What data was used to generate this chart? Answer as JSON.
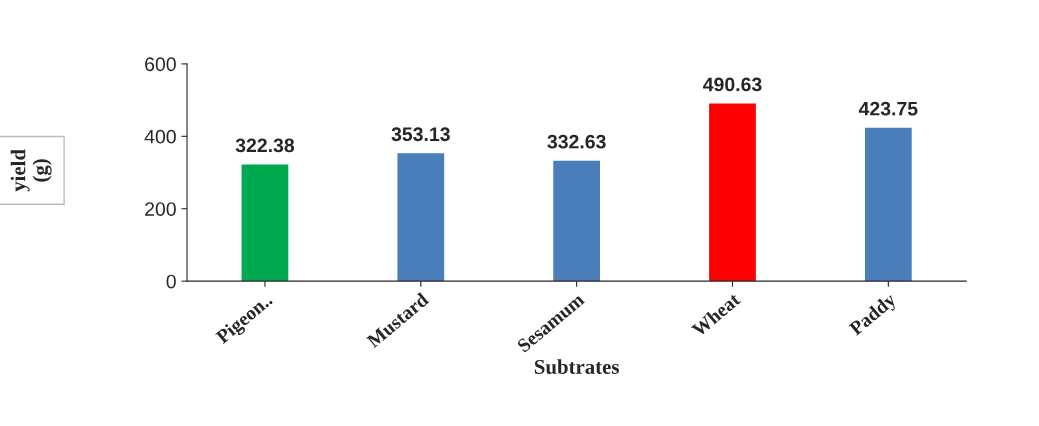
{
  "chart_data": {
    "type": "bar",
    "xlabel": "Subtrates",
    "ylabel": "yield\n(g)",
    "categories": [
      "Pigeon..",
      "Mustard",
      "Sesamum",
      "Wheat",
      "Paddy"
    ],
    "values": [
      322.38,
      353.13,
      332.63,
      490.63,
      423.75
    ],
    "colors": [
      "#00a84f",
      "#4a7ebb",
      "#4a7ebb",
      "#ff0000",
      "#4a7ebb"
    ],
    "ylim": [
      0,
      600
    ],
    "yticks": [
      0,
      200,
      400,
      600
    ],
    "data_labels": true,
    "grid": false
  }
}
